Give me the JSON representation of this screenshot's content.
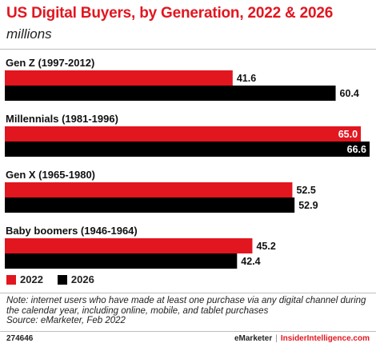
{
  "header": {
    "title": "US Digital Buyers, by Generation, 2022 & 2026",
    "subtitle": "millions"
  },
  "chart_data": {
    "type": "bar",
    "orientation": "horizontal",
    "title": "US Digital Buyers, by Generation, 2022 & 2026",
    "subtitle": "millions",
    "categories": [
      "Gen Z (1997-2012)",
      "Millennials (1981-1996)",
      "Gen X (1965-1980)",
      "Baby boomers (1946-1964)"
    ],
    "series": [
      {
        "name": "2022",
        "color": "#e2161f",
        "values": [
          41.6,
          65.0,
          52.5,
          45.2
        ],
        "labels": [
          "41.6",
          "65.0",
          "52.5",
          "45.2"
        ]
      },
      {
        "name": "2026",
        "color": "#000000",
        "values": [
          60.4,
          66.6,
          52.9,
          42.4
        ],
        "labels": [
          "60.4",
          "66.6",
          "52.9",
          "42.4"
        ]
      }
    ],
    "xlim": [
      0,
      66.6
    ],
    "grid": false,
    "legend_position": "bottom-left"
  },
  "legend": {
    "items": [
      {
        "label": "2022",
        "color": "#e2161f"
      },
      {
        "label": "2026",
        "color": "#000000"
      }
    ]
  },
  "note": {
    "text": "Note: internet users who have made at least one purchase via any digital channel during the calendar year, including online, mobile, and tablet purchases",
    "source": "Source: eMarketer, Feb 2022"
  },
  "footer": {
    "chart_id": "274646",
    "brand": "eMarketer",
    "separator": "|",
    "site": "InsiderIntelligence.com"
  }
}
